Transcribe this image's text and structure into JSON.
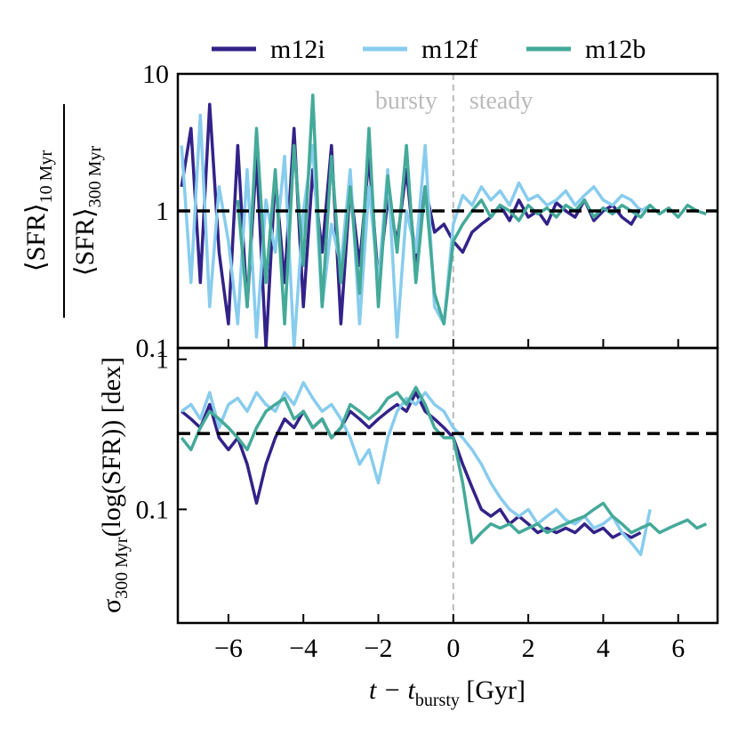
{
  "chart_data": [
    {
      "type": "line",
      "yscale": "log",
      "legend": "top",
      "ylabel": {
        "numerator": "⟨SFR⟩",
        "numerator_sub": "10 Myr",
        "denominator": "⟨SFR⟩",
        "denominator_sub": "300 Myr"
      },
      "annotations": [
        "bursty",
        "steady"
      ],
      "hline": 1,
      "vline": 0,
      "xlim": [
        -7.35,
        7.05
      ],
      "xticks": [
        -6,
        -4,
        -2,
        0,
        2,
        4,
        6
      ],
      "ylim": [
        0.1,
        10
      ],
      "yticks": [
        0.1,
        1,
        10
      ],
      "x": [
        -7.25,
        -7,
        -6.75,
        -6.5,
        -6.25,
        -6,
        -5.75,
        -5.5,
        -5.25,
        -5,
        -4.75,
        -4.5,
        -4.25,
        -4,
        -3.75,
        -3.5,
        -3.25,
        -3,
        -2.75,
        -2.5,
        -2.25,
        -2,
        -1.75,
        -1.5,
        -1.25,
        -1,
        -0.75,
        -0.5,
        -0.25,
        0,
        0.25,
        0.5,
        0.75,
        1,
        1.25,
        1.5,
        1.75,
        2,
        2.25,
        2.5,
        2.75,
        3,
        3.25,
        3.5,
        3.75,
        4,
        4.25,
        4.5,
        4.75,
        5,
        5.25,
        5.5,
        5.75,
        6,
        6.25,
        6.5,
        6.75
      ],
      "series": [
        {
          "name": "m12i",
          "color": "#332288",
          "values": [
            1.5,
            4,
            0.3,
            6,
            0.5,
            0.15,
            3,
            0.2,
            2.5,
            0.1,
            1.8,
            0.3,
            4,
            0.2,
            2,
            0.5,
            3,
            0.15,
            1.5,
            0.4,
            2.5,
            0.3,
            1.2,
            0.6,
            2,
            0.4,
            1.5,
            0.7,
            0.8,
            0.6,
            0.5,
            0.7,
            0.8,
            0.9,
            1.1,
            0.85,
            1.2,
            0.9,
            1,
            0.8,
            1.15,
            1,
            0.9,
            1.2,
            0.85,
            1,
            1.1,
            0.9,
            0.8,
            1.05,
            null,
            null,
            null,
            null,
            null,
            null,
            null
          ]
        },
        {
          "name": "m12f",
          "color": "#88ccee",
          "values": [
            3,
            0.3,
            5,
            0.2,
            1.5,
            0.6,
            0.15,
            2,
            0.12,
            1.2,
            0.5,
            2.5,
            0.1,
            1,
            3,
            0.2,
            0.8,
            0.4,
            2,
            0.15,
            1.5,
            0.3,
            2,
            0.12,
            1,
            0.5,
            3,
            0.2,
            0.15,
            0.8,
            1.3,
            1.1,
            1.5,
            1.2,
            1.4,
            1.1,
            1.6,
            1.2,
            1.3,
            1.1,
            1.2,
            1.4,
            1.1,
            1.3,
            1.5,
            1.2,
            1.1,
            1.3,
            1.2,
            1.0,
            1.1,
            null,
            null,
            null,
            null,
            null,
            null
          ]
        },
        {
          "name": "m12b",
          "color": "#44aa99",
          "values": [
            null,
            null,
            null,
            null,
            null,
            null,
            1.2,
            0.2,
            4,
            0.3,
            2,
            0.15,
            3,
            0.4,
            7,
            0.2,
            2.5,
            0.3,
            1.5,
            0.25,
            4,
            0.2,
            1.8,
            0.5,
            3,
            0.3,
            1.5,
            0.25,
            0.15,
            0.6,
            0.8,
            1,
            1.2,
            0.9,
            1.1,
            1,
            0.85,
            1.1,
            0.95,
            1.05,
            0.9,
            1.1,
            1,
            1.2,
            0.9,
            1.05,
            0.95,
            1.1,
            1,
            0.9,
            1.1,
            0.95,
            1.05,
            0.9,
            1.1,
            1,
            0.95
          ]
        }
      ]
    },
    {
      "type": "line",
      "yscale": "log",
      "ylabel": {
        "symbol": "σ",
        "sub": "300 Myr",
        "rest": "(log(SFR)) [dex]"
      },
      "xlabel": {
        "main": "t − t",
        "sub": "bursty",
        "rest": " [Gyr]"
      },
      "hline": 0.32,
      "vline": 0,
      "xlim": [
        -7.35,
        7.05
      ],
      "xticks": [
        {
          "value": -6,
          "label": "−6"
        },
        {
          "value": -4,
          "label": "−4"
        },
        {
          "value": -2,
          "label": "−2"
        },
        0,
        2,
        4,
        6
      ],
      "ylim": [
        0.0175,
        1.19
      ],
      "yticks": [
        0.1,
        1
      ],
      "x": [
        -7.25,
        -7,
        -6.75,
        -6.5,
        -6.25,
        -6,
        -5.75,
        -5.5,
        -5.25,
        -5,
        -4.75,
        -4.5,
        -4.25,
        -4,
        -3.75,
        -3.5,
        -3.25,
        -3,
        -2.75,
        -2.5,
        -2.25,
        -2,
        -1.75,
        -1.5,
        -1.25,
        -1,
        -0.75,
        -0.5,
        -0.25,
        0,
        0.25,
        0.5,
        0.75,
        1,
        1.25,
        1.5,
        1.75,
        2,
        2.25,
        2.5,
        2.75,
        3,
        3.25,
        3.5,
        3.75,
        4,
        4.25,
        4.5,
        4.75,
        5,
        5.25,
        5.5,
        5.75,
        6,
        6.25,
        6.5,
        6.75
      ],
      "series": [
        {
          "name": "m12i",
          "color": "#332288",
          "values": [
            0.45,
            0.4,
            0.35,
            0.5,
            0.3,
            0.25,
            0.3,
            0.2,
            0.11,
            0.2,
            0.3,
            0.4,
            0.35,
            0.45,
            0.35,
            0.4,
            0.3,
            0.35,
            0.45,
            0.4,
            0.35,
            0.4,
            0.45,
            0.5,
            0.45,
            0.6,
            0.45,
            0.4,
            0.35,
            0.3,
            0.2,
            0.14,
            0.1,
            0.09,
            0.1,
            0.08,
            0.09,
            0.08,
            0.07,
            0.075,
            0.07,
            0.075,
            0.07,
            0.08,
            0.07,
            0.075,
            0.065,
            0.07,
            0.065,
            0.07,
            null,
            null,
            null,
            null,
            null,
            null,
            null
          ]
        },
        {
          "name": "m12f",
          "color": "#88ccee",
          "values": [
            0.45,
            0.5,
            0.4,
            0.6,
            0.35,
            0.5,
            0.55,
            0.45,
            0.6,
            0.5,
            0.45,
            0.6,
            0.5,
            0.7,
            0.55,
            0.45,
            0.5,
            0.4,
            0.3,
            0.2,
            0.25,
            0.15,
            0.3,
            0.45,
            0.55,
            0.5,
            0.6,
            0.5,
            0.45,
            0.35,
            0.3,
            0.25,
            0.2,
            0.15,
            0.12,
            0.1,
            0.09,
            0.1,
            0.08,
            0.09,
            0.1,
            0.085,
            0.08,
            0.09,
            0.075,
            0.08,
            0.09,
            0.07,
            0.06,
            0.05,
            0.1,
            null,
            null,
            null,
            null,
            null,
            null
          ]
        },
        {
          "name": "m12b",
          "color": "#44aa99",
          "values": [
            0.3,
            0.25,
            0.35,
            0.45,
            0.4,
            0.35,
            0.3,
            0.25,
            0.35,
            0.45,
            0.5,
            0.55,
            0.4,
            0.45,
            0.35,
            0.4,
            0.3,
            0.35,
            0.5,
            0.45,
            0.4,
            0.45,
            0.55,
            0.6,
            0.5,
            0.65,
            0.5,
            0.35,
            0.3,
            0.3,
            0.15,
            0.06,
            0.07,
            0.08,
            0.075,
            0.08,
            0.07,
            0.075,
            0.08,
            0.07,
            0.075,
            0.08,
            0.085,
            0.09,
            0.1,
            0.11,
            0.09,
            0.08,
            0.07,
            0.075,
            0.08,
            0.07,
            0.075,
            0.08,
            0.085,
            0.075,
            0.08
          ]
        }
      ]
    }
  ]
}
